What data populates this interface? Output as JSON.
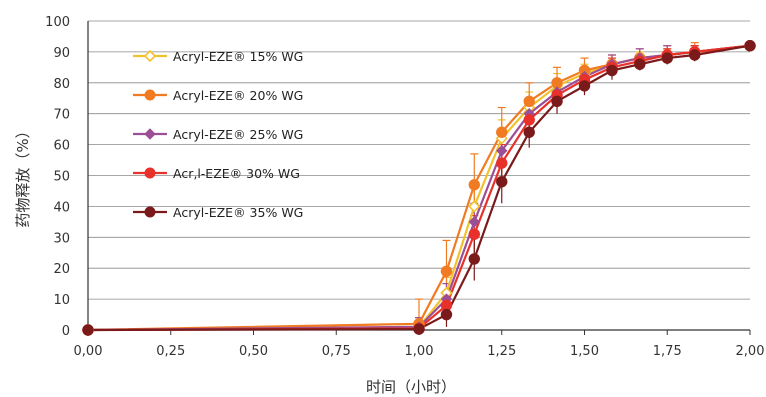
{
  "chart_data": {
    "type": "line",
    "xlabel": "时间（小时）",
    "ylabel": "药物释放（%）",
    "xlim": [
      0,
      2
    ],
    "ylim": [
      0,
      100
    ],
    "x_ticks": [
      "0,00",
      "0,25",
      "0,50",
      "0,75",
      "1,00",
      "1,25",
      "1,50",
      "1,75",
      "2,00"
    ],
    "y_ticks": [
      "0",
      "10",
      "20",
      "30",
      "40",
      "50",
      "60",
      "70",
      "80",
      "90",
      "100"
    ],
    "grid": "horizontal",
    "legend_position": "top-left",
    "series": [
      {
        "name": "Acryl-EZE® 15% WG",
        "color": "#F2C12E",
        "marker": "diamond-open",
        "x": [
          0,
          1.0,
          1.083,
          1.167,
          1.25,
          1.333,
          1.417,
          1.5,
          1.583,
          1.667,
          1.75,
          1.833,
          2.0
        ],
        "y": [
          0,
          1,
          12,
          40,
          62,
          72,
          79,
          83,
          86,
          88,
          89,
          90,
          92
        ],
        "err": [
          0,
          3,
          5,
          6,
          6,
          5,
          4,
          3,
          3,
          2,
          2,
          2,
          1
        ]
      },
      {
        "name": "Acryl-EZE® 20% WG",
        "color": "#F07B22",
        "marker": "circle",
        "x": [
          0,
          1.0,
          1.083,
          1.167,
          1.25,
          1.333,
          1.417,
          1.5,
          1.583,
          1.667,
          1.75,
          1.833,
          2.0
        ],
        "y": [
          0,
          2,
          19,
          47,
          64,
          74,
          80,
          84,
          86,
          88,
          89,
          90,
          92
        ],
        "err": [
          0,
          8,
          10,
          10,
          8,
          6,
          5,
          4,
          3,
          3,
          3,
          3,
          1
        ]
      },
      {
        "name": "Acryl-EZE® 25% WG",
        "color": "#9B4F96",
        "marker": "diamond",
        "x": [
          0,
          1.0,
          1.083,
          1.167,
          1.25,
          1.333,
          1.417,
          1.5,
          1.583,
          1.667,
          1.75,
          1.833,
          2.0
        ],
        "y": [
          0,
          1,
          10,
          35,
          58,
          70,
          77,
          82,
          86,
          88,
          89,
          90,
          92
        ],
        "err": [
          0,
          3,
          5,
          6,
          6,
          5,
          4,
          3,
          3,
          3,
          3,
          2,
          1
        ]
      },
      {
        "name": "Acr‚l-EZE® 30% WG",
        "color": "#E8312A",
        "marker": "circle",
        "x": [
          0,
          1.0,
          1.083,
          1.167,
          1.25,
          1.333,
          1.417,
          1.5,
          1.583,
          1.667,
          1.75,
          1.833,
          2.0
        ],
        "y": [
          0,
          0.5,
          8,
          31,
          54,
          68,
          76,
          81,
          85,
          87,
          89,
          90,
          92
        ],
        "err": [
          0,
          2,
          4,
          6,
          6,
          5,
          4,
          3,
          3,
          2,
          2,
          2,
          1
        ]
      },
      {
        "name": "Acryl-EZE® 35% WG",
        "color": "#7A1A1A",
        "marker": "circle",
        "x": [
          0,
          1.0,
          1.083,
          1.167,
          1.25,
          1.333,
          1.417,
          1.5,
          1.583,
          1.667,
          1.75,
          1.833,
          2.0
        ],
        "y": [
          0,
          0.3,
          5,
          23,
          48,
          64,
          74,
          79,
          84,
          86,
          88,
          89,
          92
        ],
        "err": [
          0,
          2,
          4,
          7,
          7,
          5,
          4,
          3,
          3,
          2,
          2,
          2,
          1
        ]
      }
    ]
  }
}
